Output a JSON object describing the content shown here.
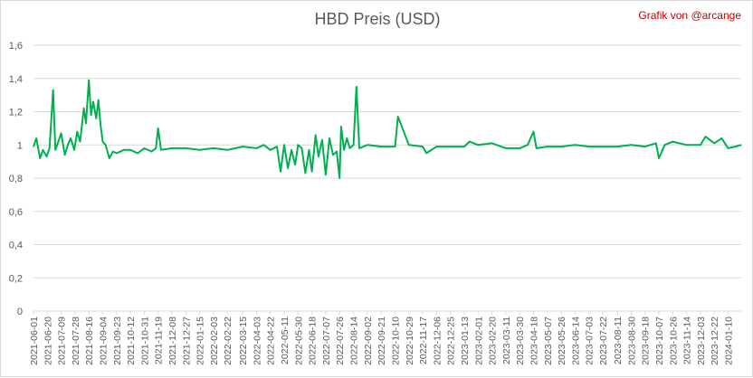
{
  "title": "HBD Preis (USD)",
  "credit": "Grafik von @arcange",
  "colors": {
    "line": "#00b050",
    "grid": "#d9d9d9",
    "axis_text": "#595959",
    "credit": "#c00000"
  },
  "chart_data": {
    "type": "line",
    "title": "HBD Preis (USD)",
    "xlabel": "",
    "ylabel": "",
    "ylim": [
      0,
      1.6
    ],
    "yticks": [
      "0",
      "0,2",
      "0,4",
      "0,6",
      "0,8",
      "1",
      "1,2",
      "1,4",
      "1,6"
    ],
    "x_tick_labels": [
      "2021-06-01",
      "2021-06-20",
      "2021-07-09",
      "2021-07-28",
      "2021-08-16",
      "2021-09-04",
      "2021-09-23",
      "2021-10-12",
      "2021-10-31",
      "2021-11-19",
      "2021-12-08",
      "2021-12-27",
      "2022-01-15",
      "2022-02-03",
      "2022-02-22",
      "2022-03-15",
      "2022-04-03",
      "2022-04-22",
      "2022-05-11",
      "2022-05-30",
      "2022-06-18",
      "2022-07-07",
      "2022-07-26",
      "2022-08-14",
      "2022-09-02",
      "2022-09-21",
      "2022-10-10",
      "2022-10-29",
      "2022-11-17",
      "2022-12-06",
      "2022-12-25",
      "2023-01-13",
      "2023-02-01",
      "2023-02-20",
      "2023-03-11",
      "2023-03-30",
      "2023-04-18",
      "2023-05-07",
      "2023-05-26",
      "2023-06-14",
      "2023-07-03",
      "2023-07-22",
      "2023-08-11",
      "2023-08-30",
      "2023-09-18",
      "2023-10-07",
      "2023-10-26",
      "2023-11-14",
      "2023-12-03",
      "2023-12-22",
      "2024-01-10"
    ],
    "grid": true,
    "legend": "none",
    "series": [
      {
        "x": [
          "2021-06-01",
          "2021-06-05",
          "2021-06-10",
          "2021-06-14",
          "2021-06-19",
          "2021-06-23",
          "2021-06-28",
          "2021-07-01",
          "2021-07-05",
          "2021-07-09",
          "2021-07-14",
          "2021-07-18",
          "2021-07-22",
          "2021-07-27",
          "2021-07-31",
          "2021-08-04",
          "2021-08-09",
          "2021-08-12",
          "2021-08-16",
          "2021-08-19",
          "2021-08-22",
          "2021-08-26",
          "2021-08-29",
          "2021-09-01",
          "2021-09-04",
          "2021-09-08",
          "2021-09-13",
          "2021-09-18",
          "2021-09-23",
          "2021-10-03",
          "2021-10-12",
          "2021-10-22",
          "2021-10-31",
          "2021-11-10",
          "2021-11-16",
          "2021-11-19",
          "2021-11-23",
          "2021-12-08",
          "2021-12-27",
          "2022-01-15",
          "2022-02-03",
          "2022-02-22",
          "2022-03-15",
          "2022-04-03",
          "2022-04-13",
          "2022-04-22",
          "2022-05-01",
          "2022-05-06",
          "2022-05-11",
          "2022-05-16",
          "2022-05-21",
          "2022-05-26",
          "2022-05-30",
          "2022-06-04",
          "2022-06-09",
          "2022-06-14",
          "2022-06-18",
          "2022-06-23",
          "2022-06-27",
          "2022-07-02",
          "2022-07-07",
          "2022-07-12",
          "2022-07-17",
          "2022-07-22",
          "2022-07-26",
          "2022-07-28",
          "2022-08-01",
          "2022-08-05",
          "2022-08-09",
          "2022-08-14",
          "2022-08-18",
          "2022-08-22",
          "2022-09-02",
          "2022-09-21",
          "2022-10-10",
          "2022-10-14",
          "2022-10-29",
          "2022-11-17",
          "2022-11-22",
          "2022-12-06",
          "2022-12-25",
          "2023-01-13",
          "2023-01-20",
          "2023-02-01",
          "2023-02-20",
          "2023-03-11",
          "2023-03-30",
          "2023-04-10",
          "2023-04-18",
          "2023-04-22",
          "2023-05-07",
          "2023-05-26",
          "2023-06-14",
          "2023-07-03",
          "2023-07-22",
          "2023-08-11",
          "2023-08-30",
          "2023-09-18",
          "2023-10-03",
          "2023-10-07",
          "2023-10-15",
          "2023-10-26",
          "2023-11-14",
          "2023-12-03",
          "2023-12-10",
          "2023-12-22",
          "2024-01-01",
          "2024-01-10",
          "2024-01-20",
          "2024-01-28"
        ],
        "y": [
          0.99,
          1.04,
          0.92,
          0.97,
          0.93,
          0.98,
          1.33,
          0.97,
          1.02,
          1.07,
          0.94,
          1.0,
          1.04,
          0.97,
          1.08,
          1.02,
          1.22,
          1.13,
          1.39,
          1.18,
          1.26,
          1.16,
          1.27,
          1.12,
          1.02,
          1.0,
          0.92,
          0.96,
          0.95,
          0.97,
          0.97,
          0.95,
          0.98,
          0.96,
          0.98,
          1.1,
          0.97,
          0.98,
          0.98,
          0.97,
          0.98,
          0.97,
          0.99,
          0.98,
          1.0,
          0.97,
          0.99,
          0.84,
          1.0,
          0.86,
          0.97,
          0.88,
          1.0,
          0.98,
          0.83,
          0.97,
          0.84,
          1.06,
          0.93,
          1.03,
          0.82,
          1.04,
          0.94,
          0.96,
          0.8,
          1.11,
          0.97,
          1.04,
          0.98,
          1.0,
          1.35,
          0.98,
          1.0,
          0.99,
          0.99,
          1.17,
          1.0,
          0.99,
          0.95,
          0.99,
          0.99,
          0.99,
          1.02,
          1.0,
          1.01,
          0.98,
          0.98,
          1.0,
          1.08,
          0.98,
          0.99,
          0.99,
          1.0,
          0.99,
          0.99,
          0.99,
          1.0,
          0.99,
          1.01,
          0.92,
          1.0,
          1.02,
          1.0,
          1.0,
          1.05,
          1.01,
          1.04,
          0.98,
          0.99,
          1.0
        ]
      }
    ]
  }
}
